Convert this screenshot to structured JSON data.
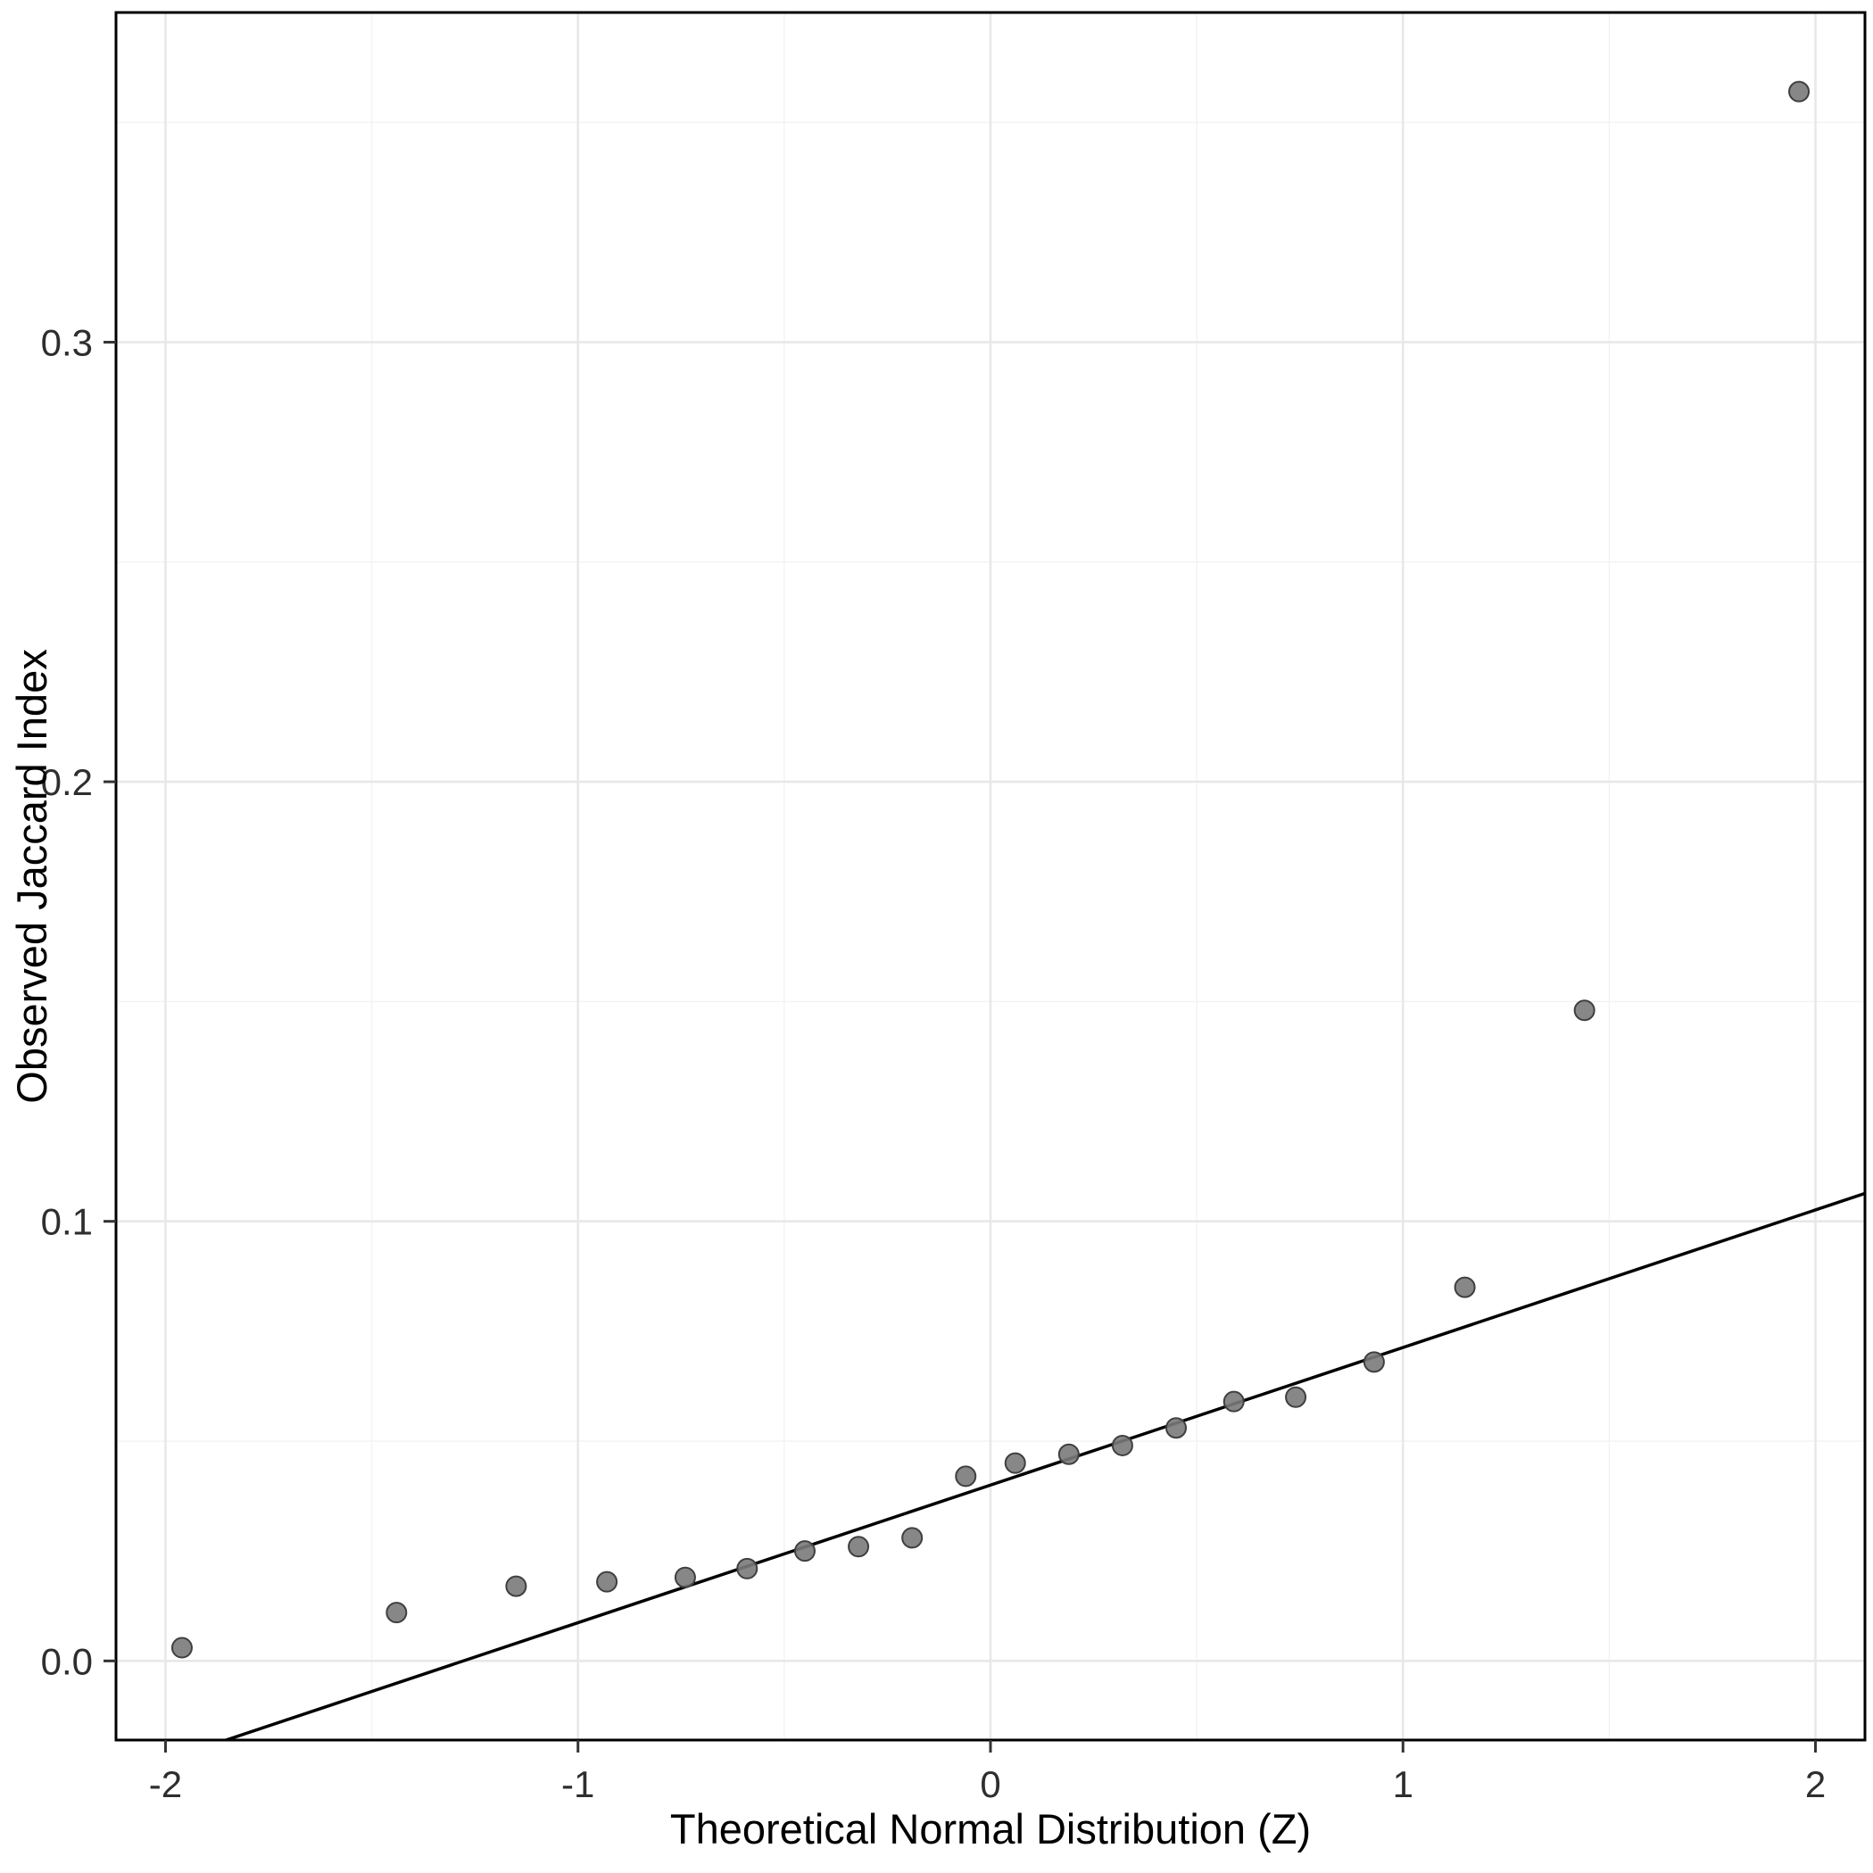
{
  "chart_data": {
    "type": "scatter",
    "title": "",
    "xlabel": "Theoretical Normal Distribution (Z)",
    "ylabel": "Observed Jaccard Index",
    "xlim": [
      -2.12,
      2.12
    ],
    "ylim": [
      -0.018,
      0.375
    ],
    "grid": "major+minor",
    "legend": "none",
    "x_ticks": [
      {
        "value": -2,
        "label": "-2"
      },
      {
        "value": -1,
        "label": "-1"
      },
      {
        "value": 0,
        "label": "0"
      },
      {
        "value": 1,
        "label": "1"
      },
      {
        "value": 2,
        "label": "2"
      }
    ],
    "y_ticks": [
      {
        "value": 0.0,
        "label": "0.0"
      },
      {
        "value": 0.1,
        "label": "0.1"
      },
      {
        "value": 0.2,
        "label": "0.2"
      },
      {
        "value": 0.3,
        "label": "0.3"
      }
    ],
    "x_minor_ticks": [
      -1.5,
      -0.5,
      0.5,
      1.5
    ],
    "y_minor_ticks": [
      0.05,
      0.15,
      0.25,
      0.35
    ],
    "points": [
      {
        "x": -1.96,
        "y": 0.003
      },
      {
        "x": -1.44,
        "y": 0.011
      },
      {
        "x": -1.15,
        "y": 0.017
      },
      {
        "x": -0.93,
        "y": 0.018
      },
      {
        "x": -0.74,
        "y": 0.019
      },
      {
        "x": -0.59,
        "y": 0.021
      },
      {
        "x": -0.45,
        "y": 0.025
      },
      {
        "x": -0.32,
        "y": 0.026
      },
      {
        "x": -0.19,
        "y": 0.028
      },
      {
        "x": -0.06,
        "y": 0.042
      },
      {
        "x": 0.06,
        "y": 0.045
      },
      {
        "x": 0.19,
        "y": 0.047
      },
      {
        "x": 0.32,
        "y": 0.049
      },
      {
        "x": 0.45,
        "y": 0.053
      },
      {
        "x": 0.59,
        "y": 0.059
      },
      {
        "x": 0.74,
        "y": 0.06
      },
      {
        "x": 0.93,
        "y": 0.068
      },
      {
        "x": 1.15,
        "y": 0.085
      },
      {
        "x": 1.44,
        "y": 0.148
      },
      {
        "x": 1.96,
        "y": 0.357
      }
    ],
    "reference_line": {
      "slope": 0.0313,
      "intercept": 0.04
    },
    "style": {
      "background": "#ffffff",
      "panel_border_color": "#000000",
      "grid_major_color": "#e8e8e8",
      "grid_minor_color": "#f2f2f2",
      "line_color": "#000000",
      "point_fill": "#7a7a7a",
      "point_stroke": "#3f3f3f",
      "tick_color": "#333333"
    }
  }
}
